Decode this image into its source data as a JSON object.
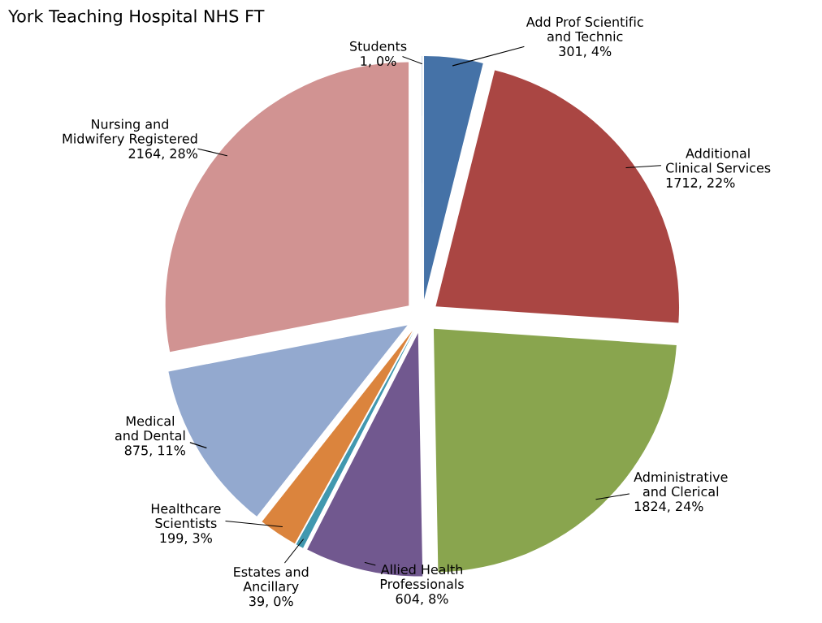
{
  "chart_data": {
    "type": "pie",
    "title": "York Teaching Hospital NHS FT",
    "categories": [
      "Add Prof Scientific and Technic",
      "Additional Clinical Services",
      "Administrative and Clerical",
      "Allied Health Professionals",
      "Estates and Ancillary",
      "Healthcare Scientists",
      "Medical and Dental",
      "Nursing and Midwifery Registered",
      "Students"
    ],
    "values": [
      301,
      1712,
      1824,
      604,
      39,
      199,
      875,
      2164,
      1
    ],
    "value_labels": [
      "301, 4%",
      "1712, 22%",
      "1824, 24%",
      "604, 8%",
      "39, 0%",
      "199, 3%",
      "875, 11%",
      "2164, 28%",
      "1, 0%"
    ],
    "colors": [
      "#4572a7",
      "#aa4643",
      "#89a54e",
      "#71588f",
      "#4198af",
      "#db843d",
      "#93a9cf",
      "#d19392",
      "#3d6a9a"
    ]
  }
}
